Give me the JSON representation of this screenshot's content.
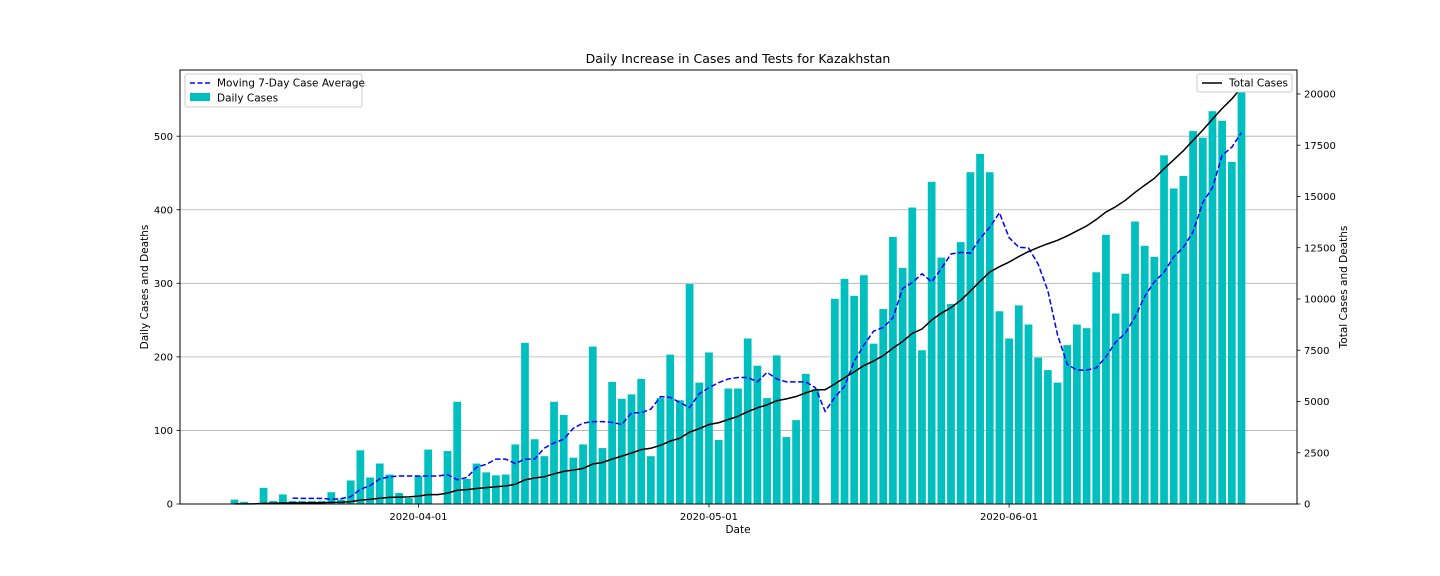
{
  "chart_data": {
    "type": "bar",
    "title": "Daily Increase in Cases and Tests for Kazakhstan",
    "xlabel": "Date",
    "ylabel_left": "Daily Cases and Deaths",
    "ylabel_right": "Total Cases and Deaths",
    "start_date": "2020-03-13",
    "x_ticks": [
      "2020-04-01",
      "2020-05-01",
      "2020-06-01"
    ],
    "ylim_left": [
      0,
      590
    ],
    "yticks_left": [
      0,
      100,
      200,
      300,
      400,
      500
    ],
    "ylim_right": [
      0,
      21167
    ],
    "yticks_right": [
      0,
      2500,
      5000,
      7500,
      10000,
      12500,
      15000,
      17500,
      20000
    ],
    "grid": true,
    "colors": {
      "bars": "#00BFBF",
      "average": "#0000FF",
      "total": "#000000"
    },
    "legend_left": {
      "position": "top-left",
      "entries": [
        "Moving 7-Day Case Average",
        "Daily Cases"
      ]
    },
    "legend_right": {
      "position": "top-right",
      "entries": [
        "Total Cases"
      ]
    },
    "series": [
      {
        "name": "Daily Cases",
        "kind": "bar",
        "axis": "left",
        "values": [
          6,
          3,
          0,
          22,
          4,
          13,
          4,
          4,
          4,
          4,
          16,
          6,
          32,
          73,
          36,
          55,
          40,
          15,
          8,
          38,
          74,
          0,
          72,
          139,
          34,
          55,
          43,
          39,
          40,
          81,
          219,
          88,
          65,
          139,
          121,
          63,
          81,
          214,
          76,
          166,
          143,
          149,
          170,
          65,
          144,
          203,
          141,
          299,
          165,
          206,
          87,
          157,
          157,
          225,
          188,
          144,
          202,
          91,
          114,
          177,
          156,
          0,
          279,
          306,
          283,
          311,
          218,
          265,
          363,
          321,
          403,
          209,
          438,
          335,
          272,
          356,
          451,
          476,
          451,
          262,
          225,
          270,
          244,
          199,
          182,
          165,
          216,
          244,
          239,
          315,
          366,
          259,
          313,
          384,
          351,
          336,
          474,
          429,
          446,
          507,
          498,
          534,
          521,
          465,
          568
        ]
      },
      {
        "name": "Moving 7-Day Case Average",
        "kind": "line-dashed",
        "axis": "left",
        "values": [
          null,
          null,
          null,
          null,
          null,
          null,
          8,
          7.6,
          7.6,
          7.6,
          6.4,
          7.3,
          9.9,
          20,
          25,
          34,
          37,
          38,
          38,
          38,
          38,
          38,
          40,
          33,
          36,
          50,
          54,
          61,
          61,
          55,
          61,
          61,
          76,
          83,
          88,
          103,
          110,
          112,
          112,
          111,
          108,
          124,
          124,
          129,
          146,
          145,
          138,
          131,
          150,
          158,
          165,
          170,
          172,
          172,
          166,
          179,
          170,
          166,
          166,
          166,
          158,
          126,
          145,
          160,
          194,
          216,
          235,
          240,
          253,
          293,
          301,
          313,
          302,
          320,
          340,
          342,
          341,
          361,
          376,
          396,
          362,
          349,
          348,
          326,
          290,
          230,
          190,
          182,
          182,
          185,
          200,
          220,
          232,
          254,
          282,
          302,
          315,
          336,
          349,
          370,
          410,
          430,
          474,
          485,
          505
        ]
      },
      {
        "name": "Total Cases",
        "kind": "line",
        "axis": "right",
        "values": [
          6,
          9,
          9,
          31,
          35,
          48,
          52,
          56,
          60,
          64,
          80,
          86,
          118,
          191,
          227,
          282,
          322,
          337,
          345,
          383,
          457,
          457,
          529,
          668,
          702,
          757,
          800,
          839,
          879,
          960,
          1179,
          1267,
          1332,
          1471,
          1592,
          1655,
          1736,
          1950,
          2026,
          2192,
          2335,
          2484,
          2654,
          2719,
          2863,
          3066,
          3207,
          3506,
          3671,
          3877,
          3964,
          4121,
          4278,
          4503,
          4691,
          4835,
          5037,
          5128,
          5242,
          5419,
          5575,
          5575,
          5854,
          6160,
          6443,
          6754,
          6972,
          7237,
          7600,
          7921,
          8324,
          8533,
          8971,
          9306,
          9578,
          9934,
          10385,
          10861,
          11312,
          11574,
          11799,
          12069,
          12313,
          12512,
          12694,
          12859,
          13075,
          13319,
          13558,
          13873,
          14239,
          14498,
          14811,
          15195,
          15546,
          15882,
          16356,
          16785,
          17231,
          17738,
          18236,
          18770,
          19291,
          19756,
          20324
        ]
      }
    ]
  }
}
